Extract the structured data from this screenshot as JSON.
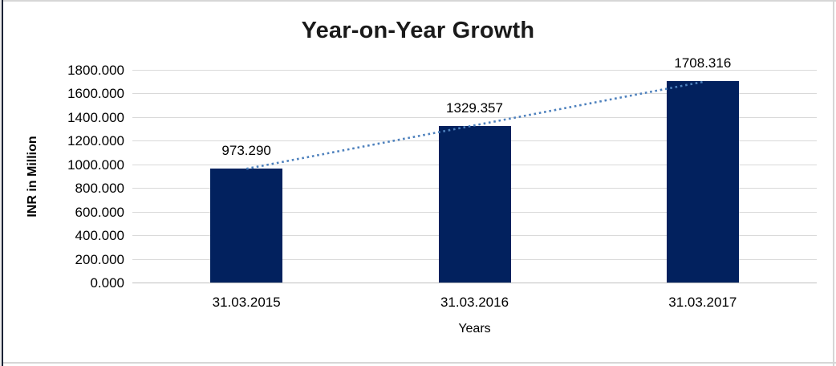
{
  "chart_data": {
    "type": "bar",
    "title": "Year-on-Year Growth",
    "xlabel": "Years",
    "ylabel": "INR in Million",
    "categories": [
      "31.03.2015",
      "31.03.2016",
      "31.03.2017"
    ],
    "values": [
      973.29,
      1329.357,
      1708.316
    ],
    "data_labels": [
      "973.290",
      "1329.357",
      "1708.316"
    ],
    "ylim": [
      0,
      1800
    ],
    "ytick_step": 200,
    "ytick_labels": [
      "0.000",
      "200.000",
      "400.000",
      "600.000",
      "800.000",
      "1000.000",
      "1200.000",
      "1400.000",
      "1600.000",
      "1800.000"
    ],
    "grid": true,
    "legend": "none",
    "trendline": {
      "type": "linear",
      "style": "dotted"
    },
    "colors": {
      "bar": "#02215E",
      "trendline": "#4E81BD",
      "gridline": "#D9D9D9",
      "axis_line": "#BFBFBF",
      "title_text": "#1A1A1A",
      "tick_text": "#000000"
    }
  }
}
